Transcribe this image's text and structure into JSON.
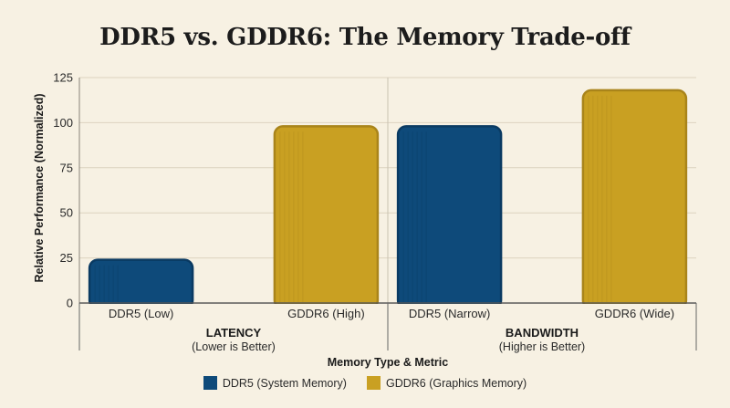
{
  "chart_data": {
    "type": "bar",
    "title": "DDR5 vs. GDDR6: The Memory Trade-off",
    "xlabel": "Memory Type & Metric",
    "ylabel": "Relative Performance (Normalized)",
    "ylim": [
      0,
      125
    ],
    "yticks": [
      0,
      25,
      50,
      75,
      100,
      125
    ],
    "grid": true,
    "legend_position": "bottom",
    "colors": {
      "DDR5": "#0e4a7a",
      "GDDR6": "#c9a022"
    },
    "groups": [
      {
        "label": "LATENCY",
        "sublabel": "(Lower is Better)",
        "bars": [
          {
            "category": "DDR5 (Low)",
            "series": "DDR5",
            "value": 24
          },
          {
            "category": "GDDR6 (High)",
            "series": "GDDR6",
            "value": 98
          }
        ]
      },
      {
        "label": "BANDWIDTH",
        "sublabel": "(Higher is Better)",
        "bars": [
          {
            "category": "DDR5 (Narrow)",
            "series": "DDR5",
            "value": 98
          },
          {
            "category": "GDDR6 (Wide)",
            "series": "GDDR6",
            "value": 118
          }
        ]
      }
    ],
    "legend": [
      {
        "series": "DDR5",
        "label": "DDR5 (System Memory)"
      },
      {
        "series": "GDDR6",
        "label": "GDDR6 (Graphics Memory)"
      }
    ]
  }
}
